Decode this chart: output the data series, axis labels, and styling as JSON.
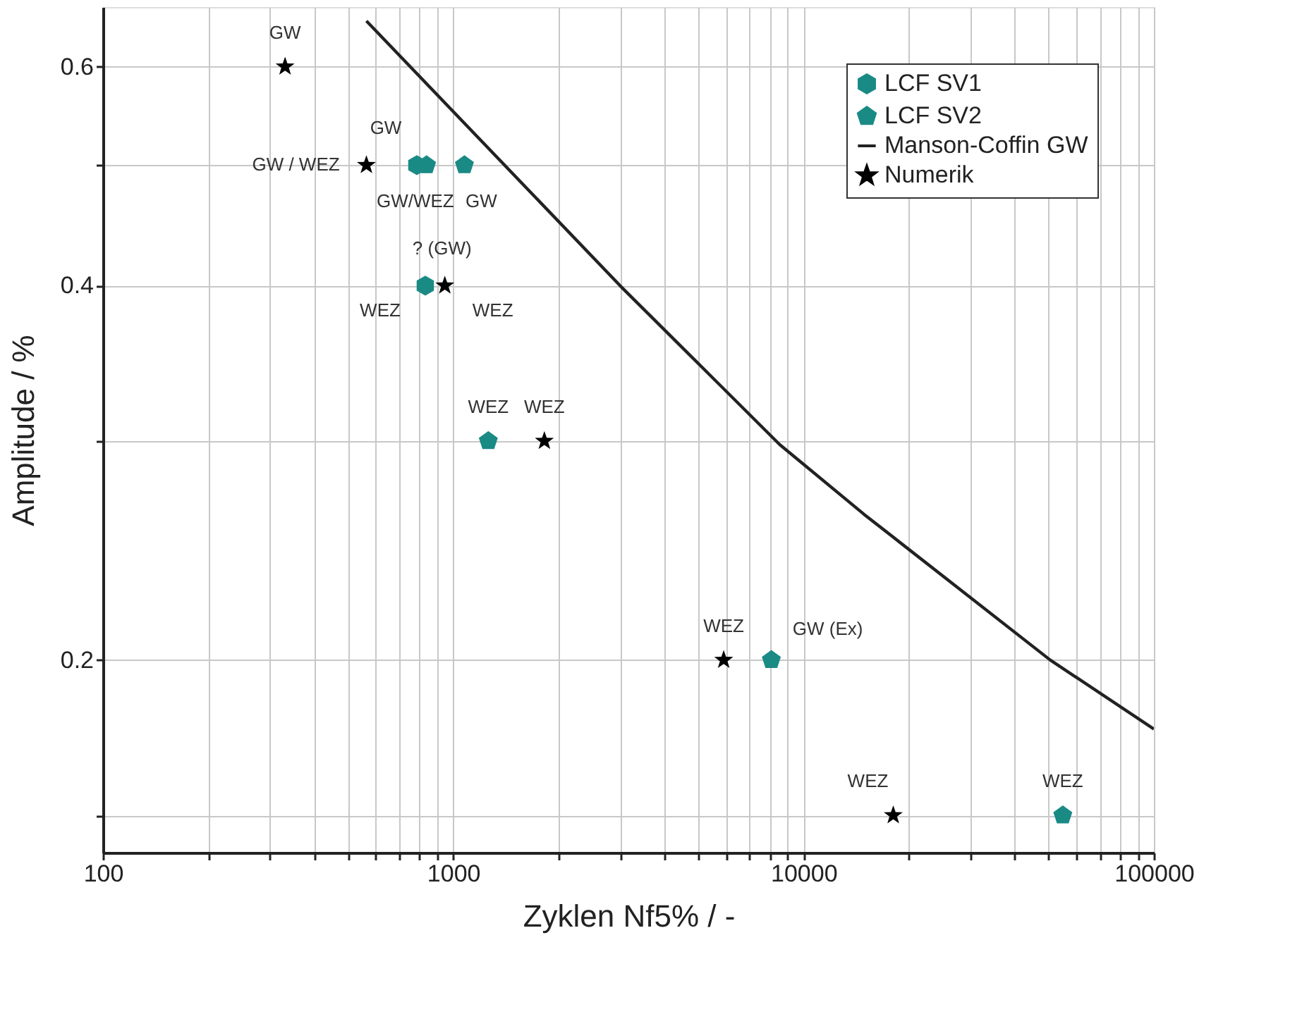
{
  "chart_data": {
    "type": "scatter",
    "xlabel": "Zyklen Nf5% / -",
    "ylabel": "Amplitude / %",
    "log": "xy",
    "grid": true,
    "legend": "top right",
    "xlim": [
      100,
      100000
    ],
    "ylim": [
      0.14,
      0.67
    ],
    "xticks": [
      100,
      {
        "value": 200,
        "label": null
      },
      {
        "value": 300,
        "label": null
      },
      {
        "value": 400,
        "label": null
      },
      {
        "value": 500,
        "label": null
      },
      {
        "value": 600,
        "label": null
      },
      {
        "value": 700,
        "label": null
      },
      {
        "value": 800,
        "label": null
      },
      {
        "value": 900,
        "label": null
      },
      1000,
      {
        "value": 2000,
        "label": null
      },
      {
        "value": 3000,
        "label": null
      },
      {
        "value": 4000,
        "label": null
      },
      {
        "value": 5000,
        "label": null
      },
      {
        "value": 6000,
        "label": null
      },
      {
        "value": 7000,
        "label": null
      },
      {
        "value": 8000,
        "label": null
      },
      {
        "value": 9000,
        "label": null
      },
      10000,
      {
        "value": 20000,
        "label": null
      },
      {
        "value": 30000,
        "label": null
      },
      {
        "value": 40000,
        "label": null
      },
      {
        "value": 50000,
        "label": null
      },
      {
        "value": 60000,
        "label": null
      },
      {
        "value": 70000,
        "label": null
      },
      {
        "value": 80000,
        "label": null
      },
      {
        "value": 90000,
        "label": null
      },
      100000
    ],
    "yticks": [
      {
        "value": 0.15,
        "label": null
      },
      0.2,
      {
        "value": 0.3,
        "label": null
      },
      0.4,
      {
        "value": 0.5,
        "label": null
      },
      0.6
    ],
    "series": [
      {
        "name": "LCF SV1",
        "marker": "circle",
        "color": "#1a8a85",
        "x": [
          787,
          832
        ],
        "values": [
          0.5,
          0.4
        ]
      },
      {
        "name": "LCF SV2",
        "marker": "diamond",
        "color": "#1a8a85",
        "x": [
          839,
          1076,
          1259,
          8091,
          54954
        ],
        "values": [
          0.5,
          0.5,
          0.3,
          0.2,
          0.15
        ]
      },
      {
        "name": "Manson-Coffin GW",
        "type": "line",
        "marker": "none",
        "line_style": "solid",
        "color": "#222222",
        "x": [
          565,
          2992,
          8551,
          14860,
          50580,
          100000
        ],
        "values": [
          0.653,
          0.4,
          0.298,
          0.262,
          0.2,
          0.176
        ]
      },
      {
        "name": "Numerik",
        "marker": "star",
        "color": "#000000",
        "x": [
          331,
          565,
          946,
          1820,
          5915,
          18030
        ],
        "values": [
          0.6,
          0.5,
          0.4,
          0.3,
          0.2,
          0.15
        ]
      }
    ],
    "annotations": [
      {
        "text": "GW",
        "x": 331,
        "y": 0.6
      },
      {
        "text": "GW / WEZ",
        "x": 565,
        "y": 0.5
      },
      {
        "text": "GW",
        "x": 787,
        "y": 0.5
      },
      {
        "text": "GW/WEZ",
        "x": 839,
        "y": 0.5
      },
      {
        "text": "GW",
        "x": 1076,
        "y": 0.5
      },
      {
        "text": "? (GW)",
        "x": 946,
        "y": 0.4
      },
      {
        "text": "WEZ",
        "x": 946,
        "y": 0.4
      },
      {
        "text": "WEZ",
        "x": 832,
        "y": 0.4
      },
      {
        "text": "WEZ",
        "x": 1259,
        "y": 0.3
      },
      {
        "text": "WEZ",
        "x": 1820,
        "y": 0.3
      },
      {
        "text": "WEZ",
        "x": 5915,
        "y": 0.2
      },
      {
        "text": "GW (Ex)",
        "x": 8091,
        "y": 0.2
      },
      {
        "text": "WEZ",
        "x": 18030,
        "y": 0.15
      },
      {
        "text": "WEZ",
        "x": 54954,
        "y": 0.15
      }
    ]
  }
}
